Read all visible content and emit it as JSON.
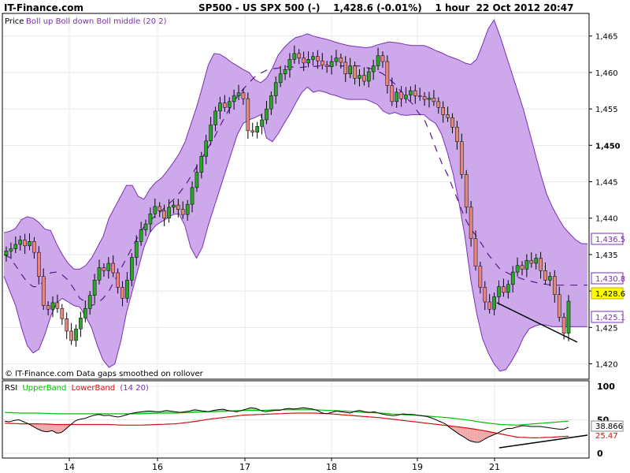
{
  "header": {
    "brand": "IT-Finance.com",
    "title": "SP500 - US SPX 500 (-)    1,428.6 (-0.01%)    1 hour  22 Oct 2012 20:47"
  },
  "price_panel": {
    "legend_prefix": "Price",
    "legend_series": "Boll up Boll down Boll middle (20 2)",
    "footer_note": "© IT-Finance.com Data gaps smoothed on rollover",
    "y_ticks": [
      "1,465",
      "1,460",
      "1,455",
      "1,450",
      "1,445",
      "1,440",
      "1,435",
      "1,430",
      "1,425",
      "1,420"
    ],
    "boll_up_label": "1,436.5",
    "boll_middle_label": "1,430.8",
    "last_price_label": "1,428.6",
    "boll_down_label": "1,425.1"
  },
  "rsi_panel": {
    "legend_prefix": "RSI",
    "legend_upper": "UpperBand",
    "legend_lower": "LowerBand",
    "legend_params": "(14 20)",
    "y_ticks": [
      "100",
      "50",
      "0"
    ],
    "upper_label": "38.866",
    "lower_label": "25.47"
  },
  "x_ticks": [
    "14",
    "16",
    "17",
    "18",
    "19",
    "21"
  ],
  "colors": {
    "band_fill": "#cda9ec",
    "band_line": "#7a2fb5",
    "middle_line": "#5a1a8c",
    "candle_up": "#2aa52a",
    "candle_down": "#e8847a",
    "wick": "#000000",
    "last_price_bg": "#ffff00",
    "rsi_upper": "#00c000",
    "rsi_lower": "#d01010",
    "rsi_up_fill": "#9de69d",
    "rsi_down_fill": "#f0a8a8",
    "grid": "#e8e8e8"
  },
  "chart_data": [
    {
      "type": "candlestick",
      "title": "SP500 - US SPX 500 (-)",
      "timeframe": "1 hour",
      "ylim": [
        1418,
        1468
      ],
      "series": [
        {
          "name": "Boll up"
        },
        {
          "name": "Boll down"
        },
        {
          "name": "Boll middle"
        }
      ],
      "close": [
        1435.5,
        1435.8,
        1436.4,
        1437.0,
        1436.2,
        1436.8,
        1435.3,
        1432.0,
        1428.0,
        1427.5,
        1428.4,
        1427.6,
        1426.2,
        1424.5,
        1423.2,
        1424.8,
        1426.3,
        1427.6,
        1429.4,
        1431.5,
        1433.2,
        1432.8,
        1433.8,
        1432.5,
        1430.5,
        1429.0,
        1431.5,
        1434.6,
        1436.8,
        1438.4,
        1439.2,
        1440.6,
        1441.6,
        1441.0,
        1440.0,
        1441.5,
        1441.8,
        1441.2,
        1440.5,
        1441.9,
        1444.2,
        1446.3,
        1448.5,
        1450.6,
        1452.8,
        1454.7,
        1455.8,
        1455.2,
        1456.0,
        1456.8,
        1457.2,
        1456.4,
        1452.0,
        1451.8,
        1452.6,
        1453.5,
        1455.0,
        1456.8,
        1458.6,
        1459.8,
        1460.4,
        1461.8,
        1462.6,
        1462.0,
        1461.3,
        1461.8,
        1462.2,
        1461.6,
        1461.0,
        1460.8,
        1461.5,
        1462.0,
        1461.4,
        1459.8,
        1460.9,
        1459.2,
        1459.6,
        1458.8,
        1460.1,
        1460.9,
        1462.3,
        1461.5,
        1458.2,
        1456.0,
        1457.3,
        1456.4,
        1456.9,
        1457.5,
        1456.8,
        1456.7,
        1456.3,
        1456.5,
        1456.0,
        1455.2,
        1454.2,
        1453.8,
        1452.5,
        1450.5,
        1446.0,
        1441.5,
        1437.2,
        1433.4,
        1430.5,
        1428.5,
        1427.5,
        1429.2,
        1430.6,
        1429.8,
        1430.9,
        1432.6,
        1433.5,
        1433.0,
        1434.2,
        1433.8,
        1434.5,
        1432.8,
        1431.5,
        1432.0,
        1429.5,
        1426.4,
        1424.2,
        1428.6
      ],
      "boll_up": [
        1438.0,
        1438.2,
        1438.6,
        1439.8,
        1440.2,
        1440.0,
        1439.4,
        1438.5,
        1438.3,
        1436.5,
        1435.0,
        1433.8,
        1433.0,
        1433.0,
        1433.5,
        1434.5,
        1436.0,
        1437.5,
        1440.0,
        1441.5,
        1443.0,
        1444.5,
        1444.5,
        1443.0,
        1442.6,
        1444.0,
        1444.9,
        1445.5,
        1446.5,
        1447.6,
        1448.8,
        1450.4,
        1452.8,
        1455.2,
        1458.0,
        1461.0,
        1462.6,
        1462.5,
        1462.0,
        1461.4,
        1460.9,
        1460.4,
        1460.0,
        1459.0,
        1458.6,
        1459.2,
        1460.6,
        1462.4,
        1463.4,
        1464.2,
        1464.8,
        1465.0,
        1465.3,
        1465.0,
        1464.8,
        1464.6,
        1464.4,
        1464.1,
        1463.9,
        1463.7,
        1463.6,
        1463.5,
        1463.4,
        1463.5,
        1463.8,
        1464.0,
        1464.2,
        1464.1,
        1464.0,
        1463.8,
        1463.7,
        1463.7,
        1463.7,
        1463.4,
        1463.0,
        1462.7,
        1462.3,
        1462.0,
        1461.7,
        1461.3,
        1461.1,
        1461.8,
        1463.8,
        1466.0,
        1467.2,
        1465.0,
        1462.5,
        1460.0,
        1457.5,
        1455.0,
        1452.0,
        1449.0,
        1446.0,
        1443.3,
        1441.5,
        1440.0,
        1438.7,
        1437.8,
        1437.0,
        1436.5,
        1436.5
      ],
      "boll_down": [
        1432.0,
        1430.0,
        1428.0,
        1425.0,
        1422.5,
        1421.5,
        1422.0,
        1424.0,
        1426.5,
        1428.3,
        1429.0,
        1428.5,
        1428.0,
        1427.8,
        1426.5,
        1425.0,
        1422.5,
        1420.5,
        1419.5,
        1420.0,
        1423.0,
        1427.0,
        1430.0,
        1433.0,
        1436.0,
        1438.0,
        1439.0,
        1439.5,
        1440.0,
        1440.5,
        1440.6,
        1439.0,
        1436.0,
        1434.5,
        1436.0,
        1439.0,
        1441.5,
        1444.0,
        1446.5,
        1449.0,
        1451.5,
        1453.0,
        1453.5,
        1453.8,
        1454.2,
        1451.0,
        1450.5,
        1451.6,
        1453.0,
        1454.3,
        1455.8,
        1457.2,
        1458.0,
        1457.3,
        1457.5,
        1457.3,
        1457.0,
        1456.8,
        1456.5,
        1456.3,
        1456.3,
        1456.3,
        1456.3,
        1456.0,
        1455.6,
        1454.7,
        1454.3,
        1454.5,
        1454.2,
        1454.1,
        1454.2,
        1454.2,
        1454.2,
        1453.5,
        1453.0,
        1451.5,
        1449.0,
        1446.0,
        1442.0,
        1437.5,
        1431.5,
        1427.0,
        1423.5,
        1421.5,
        1420.0,
        1419.0,
        1419.2,
        1420.4,
        1421.8,
        1423.6,
        1424.8,
        1425.2,
        1425.4,
        1425.3,
        1425.1,
        1425.1,
        1425.1,
        1425.1,
        1425.1,
        1425.1,
        1425.1
      ],
      "boll_middle": [
        1435.0,
        1434.6,
        1433.5,
        1432.3,
        1431.2,
        1430.6,
        1430.6,
        1431.6,
        1432.5,
        1432.6,
        1432.2,
        1431.5,
        1430.3,
        1429.0,
        1428.5,
        1428.0,
        1428.3,
        1429.0,
        1430.0,
        1431.5,
        1433.0,
        1434.5,
        1436.0,
        1437.5,
        1438.8,
        1439.6,
        1440.4,
        1441.0,
        1441.8,
        1442.5,
        1443.4,
        1444.4,
        1445.7,
        1447.0,
        1448.3,
        1449.7,
        1451.0,
        1452.6,
        1454.1,
        1455.5,
        1456.7,
        1457.7,
        1458.6,
        1459.4,
        1459.9,
        1460.3,
        1460.5,
        1460.6,
        1460.8,
        1460.8,
        1460.7,
        1460.7,
        1460.8,
        1460.8,
        1460.9,
        1460.9,
        1460.9,
        1460.9,
        1460.9,
        1460.9,
        1460.9,
        1460.9,
        1460.7,
        1460.5,
        1460.2,
        1459.8,
        1459.1,
        1458.4,
        1457.4,
        1456.5,
        1455.7,
        1454.5,
        1453.6,
        1451.8,
        1449.6,
        1447.6,
        1446.0,
        1444.0,
        1442.0,
        1440.0,
        1438.5,
        1437.5,
        1436.3,
        1435.0,
        1434.0,
        1433.0,
        1432.6,
        1432.2,
        1431.9,
        1431.6,
        1431.4,
        1431.2,
        1431.0,
        1430.9,
        1430.8,
        1430.8,
        1430.8,
        1430.8,
        1430.8,
        1430.8,
        1430.8
      ]
    },
    {
      "type": "line",
      "title": "RSI",
      "ylim": [
        0,
        100
      ],
      "series": [
        {
          "name": "RSI",
          "values": [
            48,
            47,
            49,
            50,
            47,
            44,
            40,
            36,
            33,
            32,
            34,
            30,
            31,
            37,
            43,
            49,
            51,
            52,
            55,
            57,
            58,
            56,
            57,
            55,
            54,
            56,
            58,
            60,
            61,
            62,
            63,
            63,
            62,
            62,
            64,
            63,
            62,
            61,
            62,
            63,
            65,
            64,
            63,
            62,
            64,
            65,
            66,
            64,
            63,
            62,
            64,
            66,
            68,
            67,
            64,
            62,
            63,
            64,
            64,
            66,
            67,
            66,
            67,
            68,
            67,
            66,
            64,
            60,
            59,
            61,
            63,
            62,
            61,
            60,
            63,
            64,
            62,
            61,
            62,
            60,
            58,
            57,
            56,
            57,
            59,
            58,
            58,
            57,
            56,
            55,
            53,
            50,
            47,
            44,
            38,
            33,
            28,
            24,
            19,
            17,
            16,
            20,
            24,
            27,
            30,
            34,
            37,
            37,
            39,
            41,
            41,
            40,
            40,
            40,
            39,
            38,
            37,
            36,
            36,
            38.9
          ]
        },
        {
          "name": "UpperBand",
          "values": [
            61,
            60,
            60,
            59,
            59,
            59,
            59,
            59,
            59,
            60,
            60,
            61,
            62,
            63,
            64,
            64,
            65,
            65,
            65,
            64,
            63,
            61,
            60,
            58,
            57,
            55,
            53,
            50,
            46,
            43,
            42,
            44,
            46,
            48
          ]
        },
        {
          "name": "LowerBand",
          "values": [
            45,
            44,
            44,
            43,
            43,
            43,
            43,
            42,
            42,
            43,
            44,
            47,
            51,
            54,
            57,
            58,
            59,
            60,
            60,
            59,
            57,
            55,
            53,
            50,
            47,
            44,
            41,
            38,
            34,
            29,
            24,
            23,
            24,
            25.47
          ]
        }
      ]
    }
  ]
}
